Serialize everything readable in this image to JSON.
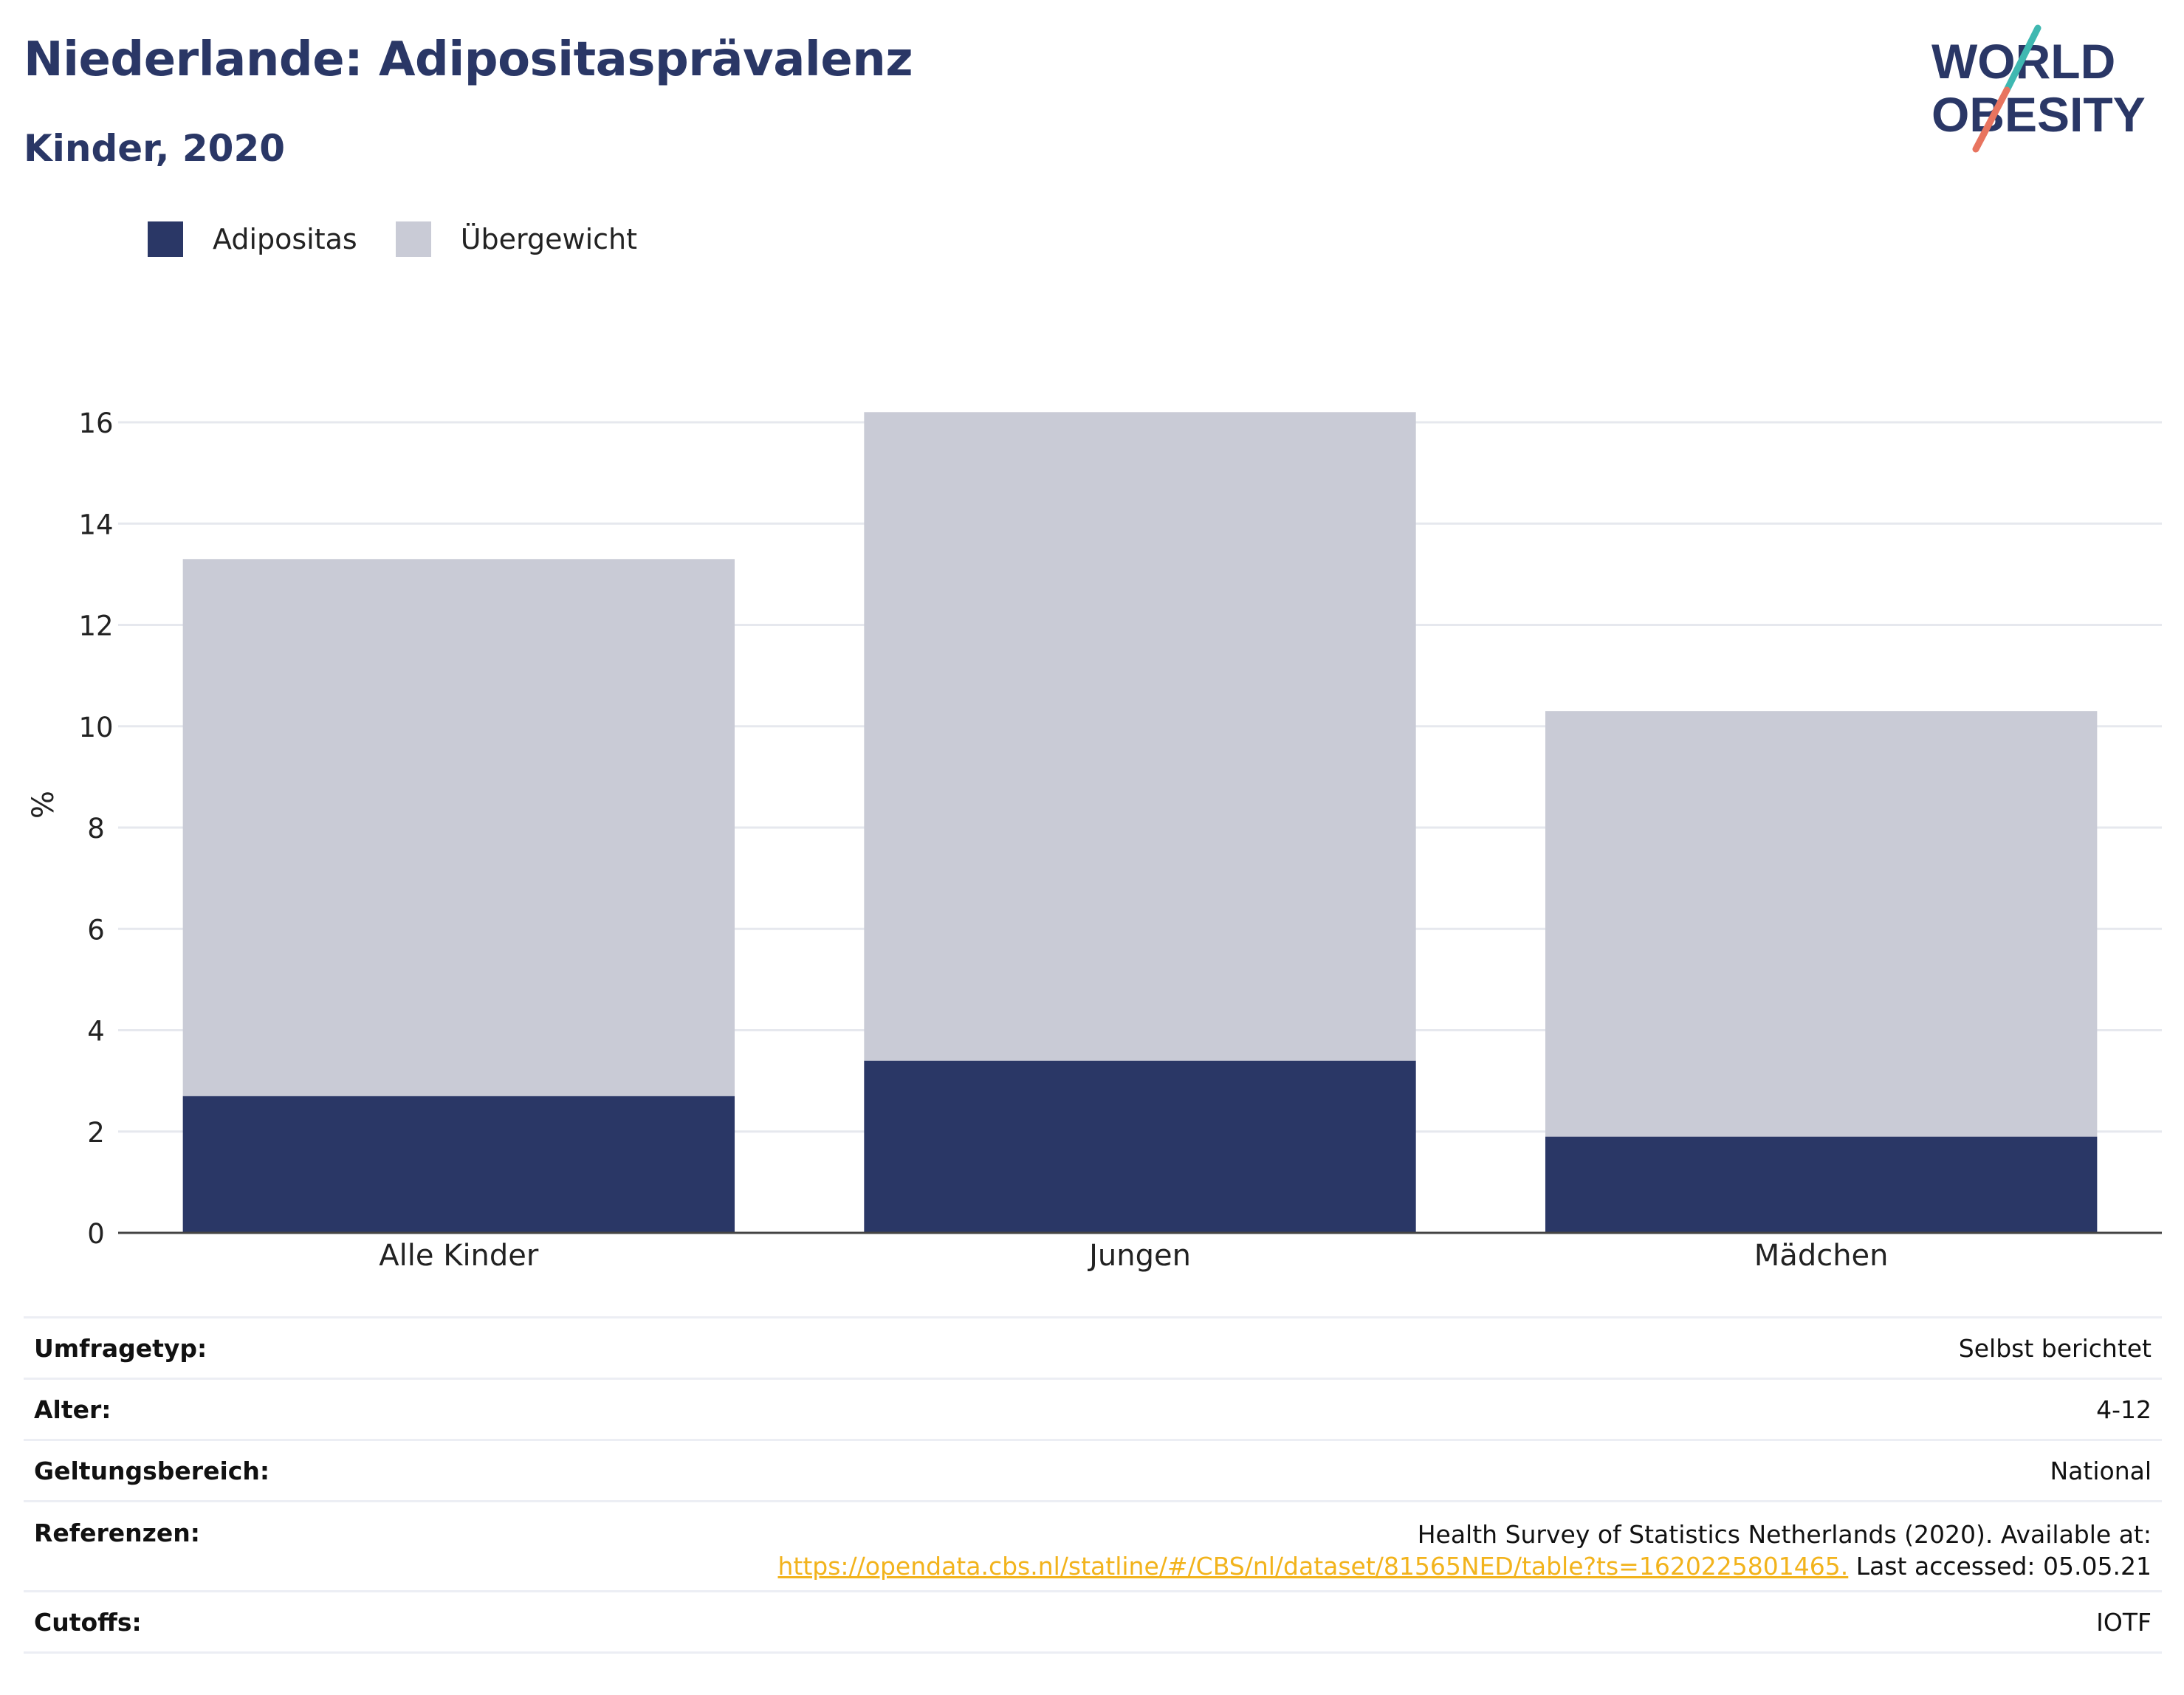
{
  "title": "Niederlande: Adipositasprävalenz",
  "subtitle": "Kinder, 2020",
  "logo": {
    "line1": "WORLD",
    "line2": "OBESITY",
    "colors": {
      "text": "#2a3766",
      "slash_top": "#3fb8b1",
      "slash_bottom": "#e8745f"
    }
  },
  "colors": {
    "adipositas": "#2a3766",
    "uebergewicht": "#c9cbd6",
    "grid": "#e6e8ee",
    "axis": "#444444",
    "link": "#f2b31c"
  },
  "legend": [
    {
      "label": "Adipositas",
      "color": "#2a3766"
    },
    {
      "label": "Übergewicht",
      "color": "#c9cbd6"
    }
  ],
  "chart_data": {
    "type": "bar",
    "stacked": true,
    "categories": [
      "Alle Kinder",
      "Jungen",
      "Mädchen"
    ],
    "series": [
      {
        "name": "Adipositas",
        "values": [
          2.7,
          3.4,
          1.9
        ]
      },
      {
        "name": "Übergewicht",
        "values": [
          10.6,
          12.8,
          8.4
        ]
      }
    ],
    "totals": [
      13.3,
      16.2,
      10.3
    ],
    "ylabel": "%",
    "ylim": [
      0,
      16.2
    ],
    "yticks": [
      0,
      2,
      4,
      6,
      8,
      10,
      12,
      14,
      16
    ],
    "grid": true
  },
  "info": [
    {
      "label": "Umfragetyp:",
      "value": "Selbst berichtet"
    },
    {
      "label": "Alter:",
      "value": "4-12"
    },
    {
      "label": "Geltungsbereich:",
      "value": "National"
    },
    {
      "label": "Referenzen:",
      "value_line1": "Health Survey of Statistics Netherlands (2020). Available at:",
      "link": "https://opendata.cbs.nl/statline/#/CBS/nl/dataset/81565NED/table?ts=1620225801465.",
      "value_after_link": " Last accessed: 05.05.21"
    },
    {
      "label": "Cutoffs:",
      "value": "IOTF"
    }
  ]
}
